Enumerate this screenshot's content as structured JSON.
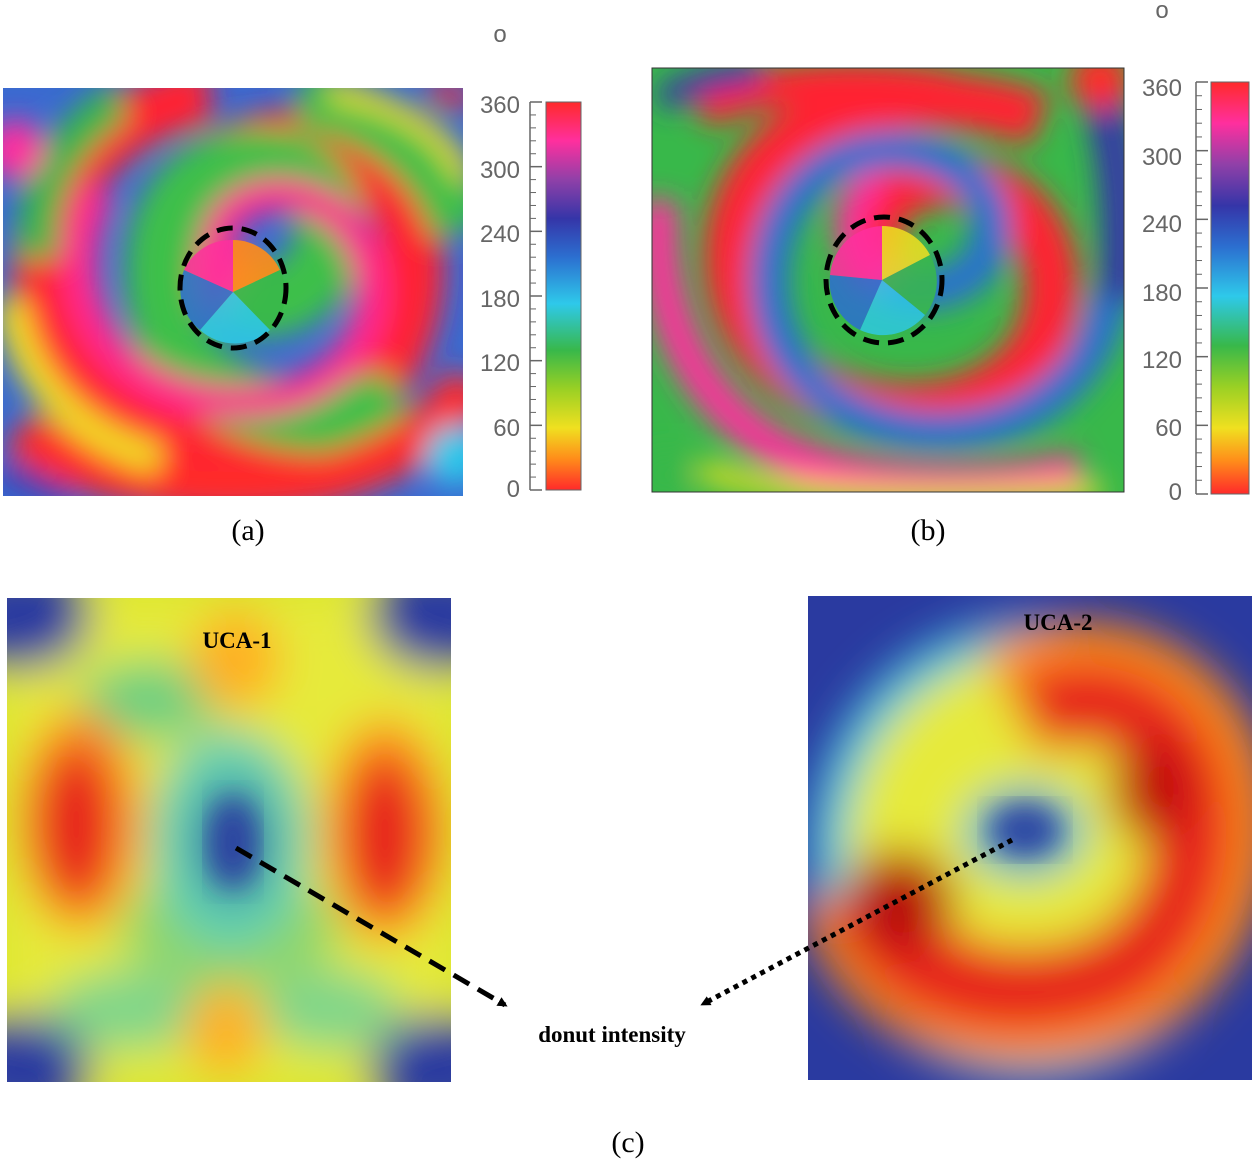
{
  "panels": {
    "a": {
      "caption": "(a)",
      "unit": "o",
      "ticks": [
        "0",
        "60",
        "120",
        "180",
        "240",
        "300",
        "360"
      ]
    },
    "b": {
      "caption": "(b)",
      "unit": "o",
      "ticks": [
        "0",
        "60",
        "120",
        "180",
        "240",
        "300",
        "360"
      ]
    },
    "c": {
      "caption": "(c)",
      "left_label": "UCA-1",
      "right_label": "UCA-2",
      "center_label": "donut intensity"
    }
  },
  "colors": {
    "phase_scale": [
      "#ff2a2a",
      "#ff8c1a",
      "#f0e020",
      "#9ad024",
      "#38b84a",
      "#2ec9ea",
      "#2c6fd0",
      "#3535a8",
      "#9040a8",
      "#ff2f9e",
      "#ff2a2a"
    ],
    "intensity_low": "#2a3aa0",
    "intensity_mid": "#f5e92a",
    "intensity_high": "#e61a1a",
    "marker": "#000000"
  }
}
